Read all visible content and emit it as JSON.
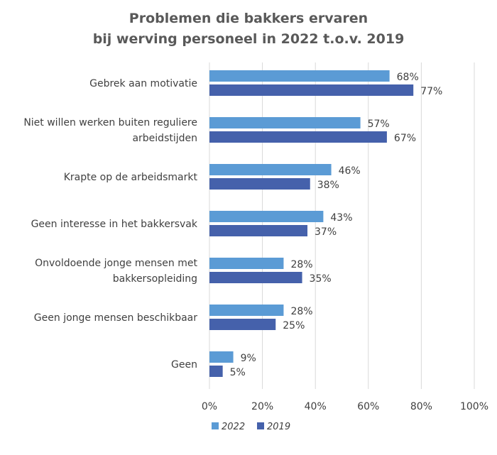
{
  "chart_data": {
    "type": "bar",
    "orientation": "horizontal",
    "title": "Problemen die bakkers ervaren bij werving personeel in 2022 t.o.v. 2019",
    "title_lines": [
      "Problemen die bakkers ervaren",
      "bij werving personeel in 2022 t.o.v. 2019"
    ],
    "categories": [
      [
        "Gebrek aan motivatie"
      ],
      [
        "Niet willen werken buiten reguliere",
        "arbeidstijden"
      ],
      [
        "Krapte op de arbeidsmarkt"
      ],
      [
        "Geen interesse in het bakkersvak"
      ],
      [
        "Onvoldoende jonge mensen met",
        "bakkersopleiding"
      ],
      [
        "Geen jonge mensen beschikbaar"
      ],
      [
        "Geen"
      ]
    ],
    "series": [
      {
        "name": "2022",
        "color": "#5b9bd5",
        "values": [
          68,
          57,
          46,
          43,
          28,
          28,
          9
        ]
      },
      {
        "name": "2019",
        "color": "#4561ab",
        "values": [
          77,
          67,
          38,
          37,
          35,
          25,
          5
        ]
      }
    ],
    "value_suffix": "%",
    "xlim": [
      0,
      100
    ],
    "ticks": [
      0,
      20,
      40,
      60,
      80,
      100
    ],
    "tick_labels": [
      "0%",
      "20%",
      "40%",
      "60%",
      "80%",
      "100%"
    ],
    "grid": true,
    "legend": "bottom"
  }
}
